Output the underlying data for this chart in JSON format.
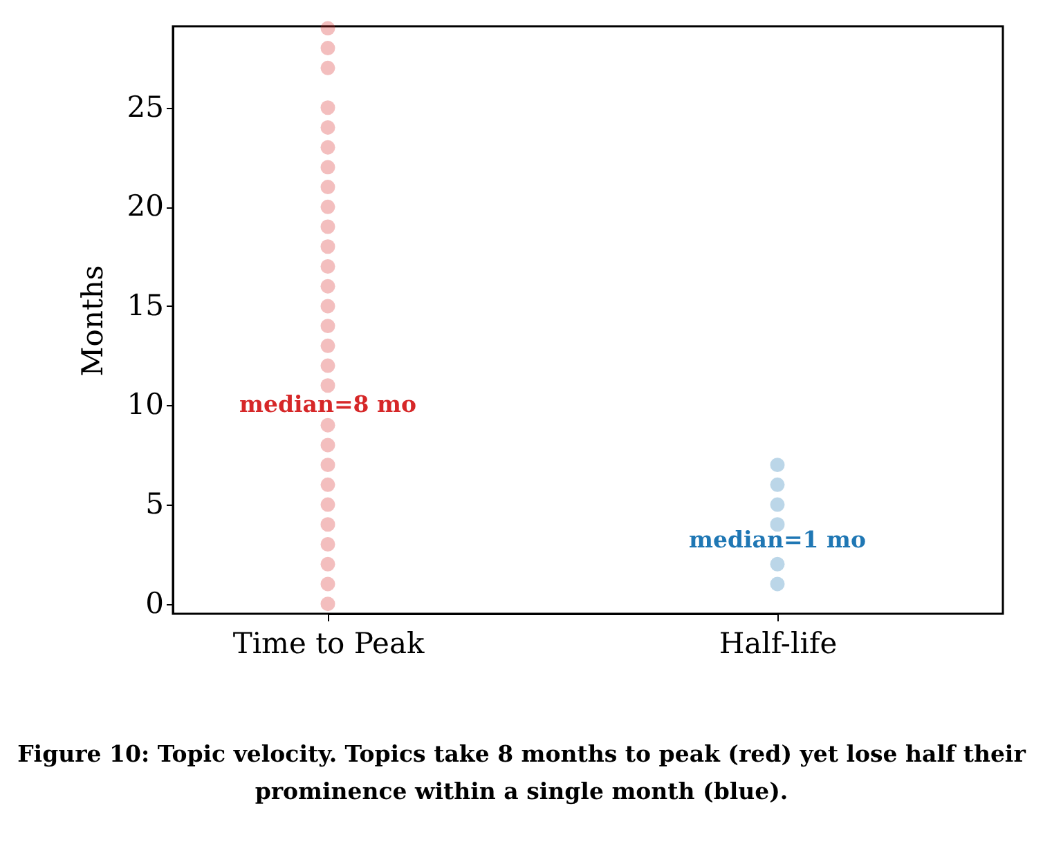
{
  "chart_data": {
    "type": "scatter",
    "ylabel": "Months",
    "categories": [
      "Time to Peak",
      "Half-life"
    ],
    "ylim": [
      -0.5,
      29.1
    ],
    "yticks": [
      0,
      5,
      10,
      15,
      20,
      25
    ],
    "grid": false,
    "legend": false,
    "marker": "circle",
    "annotations": [
      "median=8 mo",
      "median=1 mo",
      "Figure 10: Topic velocity. Topics take 8 months to peak (red) yet lose half their prominence within a single month (blue)."
    ],
    "series": [
      {
        "color": "#d62728",
        "x": [
          "Time to Peak",
          "Time to Peak",
          "Time to Peak",
          "Time to Peak",
          "Time to Peak",
          "Time to Peak",
          "Time to Peak",
          "Time to Peak",
          "Time to Peak",
          "Time to Peak",
          "Time to Peak",
          "Time to Peak",
          "Time to Peak",
          "Time to Peak",
          "Time to Peak",
          "Time to Peak",
          "Time to Peak",
          "Time to Peak",
          "Time to Peak",
          "Time to Peak",
          "Time to Peak",
          "Time to Peak",
          "Time to Peak",
          "Time to Peak",
          "Time to Peak",
          "Time to Peak",
          "Time to Peak",
          "Time to Peak"
        ],
        "values": [
          0,
          1,
          2,
          3,
          4,
          5,
          6,
          7,
          8,
          9,
          11,
          12,
          13,
          14,
          15,
          16,
          17,
          18,
          19,
          20,
          21,
          22,
          23,
          24,
          25,
          27,
          28,
          29
        ]
      },
      {
        "color": "#1f77b4",
        "x": [
          "Half-life",
          "Half-life",
          "Half-life",
          "Half-life",
          "Half-life",
          "Half-life"
        ],
        "values": [
          1,
          2,
          4,
          5,
          6,
          7
        ]
      }
    ]
  }
}
